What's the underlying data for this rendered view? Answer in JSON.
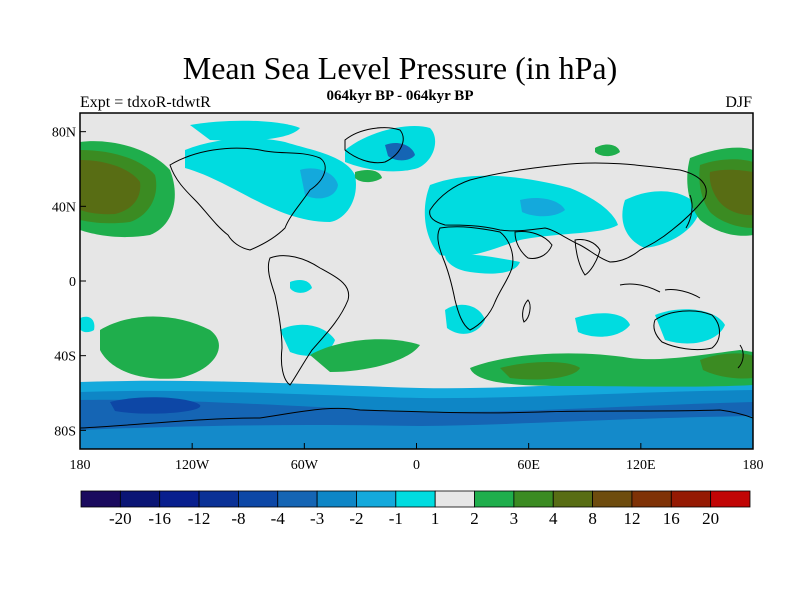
{
  "header": {
    "title": "Mean Sea Level Pressure (in hPa)",
    "subtitle": "064kyr BP - 064kyr BP",
    "experiment": "Expt = tdxoR-tdwtR",
    "season": "DJF"
  },
  "map": {
    "lon_range": [
      -180,
      180
    ],
    "lat_range": [
      -90,
      90
    ],
    "x_ticks": [
      "180",
      "120W",
      "60W",
      "0",
      "60E",
      "120E",
      "180"
    ],
    "y_ticks": [
      "80N",
      "40N",
      "0",
      "40S",
      "80S"
    ]
  },
  "colorbar": {
    "labels": [
      "-20",
      "-16",
      "-12",
      "-8",
      "-4",
      "-3",
      "-2",
      "-1",
      "1",
      "2",
      "3",
      "4",
      "8",
      "12",
      "16",
      "20"
    ],
    "colors": [
      "#1a0a5e",
      "#0a1575",
      "#081f8e",
      "#0a3196",
      "#0d47a6",
      "#1565b4",
      "#0e86c6",
      "#14a9dc",
      "#00dce0",
      "#e6e6e6",
      "#1fae4c",
      "#3b8b22",
      "#586d14",
      "#6e4c0e",
      "#7f3206",
      "#951a03",
      "#c10505"
    ]
  },
  "colors": {
    "background": "#e6e6e6",
    "coast": "#000000"
  }
}
